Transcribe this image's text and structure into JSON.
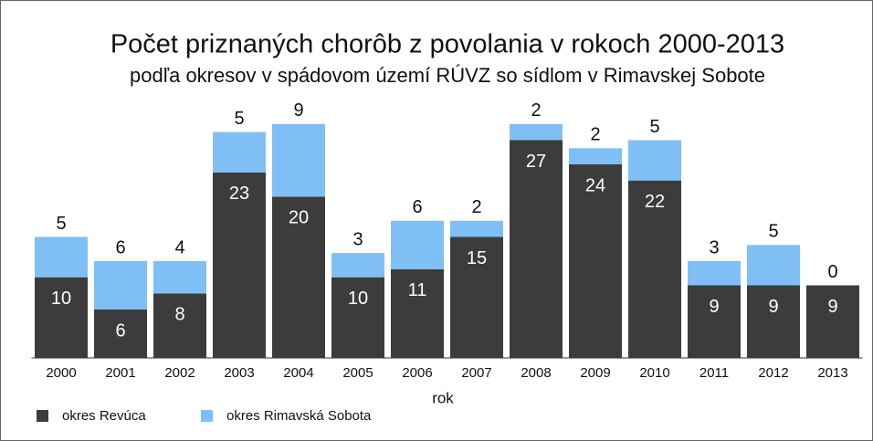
{
  "chart_data": {
    "type": "stacked_bar",
    "title": "Počet priznaných chorôb z povolania v rokoch 2000-2013",
    "subtitle": "podľa okresov v spádovom území RÚVZ so sídlom v Rimavskej Sobote",
    "x_label": "rok",
    "categories": [
      "2000",
      "2001",
      "2002",
      "2003",
      "2004",
      "2005",
      "2006",
      "2007",
      "2008",
      "2009",
      "2010",
      "2011",
      "2012",
      "2013"
    ],
    "series": [
      {
        "name": "okres Revúca",
        "color": "#3c3c3c",
        "values": [
          10,
          6,
          8,
          23,
          20,
          10,
          11,
          15,
          27,
          24,
          22,
          9,
          9,
          9
        ]
      },
      {
        "name": "okres Rimavská Sobota",
        "color": "#80bff5",
        "values": [
          5,
          6,
          4,
          5,
          9,
          3,
          6,
          2,
          2,
          2,
          5,
          3,
          5,
          0
        ]
      }
    ],
    "ylim": [
      0,
      30
    ],
    "legend": "bottom-left"
  }
}
